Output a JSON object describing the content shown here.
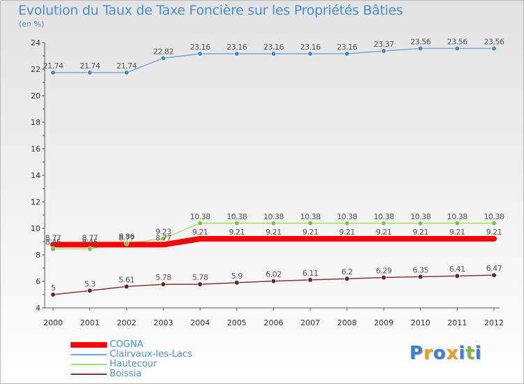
{
  "title": "Evolution du Taux de Taxe Foncière sur les Propriétés Bâties",
  "unit": "(en %)",
  "brand": {
    "text": "Proxiti",
    "letter_colors": [
      "#3a7fd4",
      "#e8a020",
      "#3a7fd4",
      "#e8a020",
      "#3a7fd4",
      "#7bbd3a",
      "#3a7fd4"
    ]
  },
  "colors": {
    "text": "#4a8fd0",
    "axis": "#555555",
    "tick_red": "#cc2222"
  },
  "chart_data": {
    "type": "line",
    "title": "Evolution du Taux de Taxe Foncière sur les Propriétés Bâties",
    "ylabel": "(en %)",
    "xlabel": "",
    "x": [
      "2000",
      "2001",
      "2002",
      "2003",
      "2004",
      "2005",
      "2006",
      "2007",
      "2008",
      "2009",
      "2010",
      "2011",
      "2012"
    ],
    "ylim": [
      4,
      24
    ],
    "yticks": [
      4,
      6,
      8,
      10,
      12,
      14,
      16,
      18,
      20,
      22,
      24
    ],
    "grid": false,
    "legend_position": "bottom-left",
    "series": [
      {
        "name": "COGNA",
        "color": "#ff0000",
        "width": 8,
        "marker": false,
        "labels": [
          "8.77",
          "8.77",
          "8.77",
          "8.77",
          "9.21",
          "9.21",
          "9.21",
          "9.21",
          "9.21",
          "9.21",
          "9.21",
          "9.21",
          "9.21"
        ],
        "values": [
          8.77,
          8.77,
          8.77,
          8.77,
          9.21,
          9.21,
          9.21,
          9.21,
          9.21,
          9.21,
          9.21,
          9.21,
          9.21
        ]
      },
      {
        "name": "Clairvaux-les-Lacs",
        "color": "#7aa9d6",
        "width": 1.5,
        "marker": true,
        "marker_color": "#3d8ccb",
        "labels": [
          "21.74",
          "21.74",
          "21.74",
          "22.82",
          "23.16",
          "23.16",
          "23.16",
          "23.16",
          "23.16",
          "23.37",
          "23.56",
          "23.56",
          "23.56"
        ],
        "values": [
          21.74,
          21.74,
          21.74,
          22.82,
          23.16,
          23.16,
          23.16,
          23.16,
          23.16,
          23.37,
          23.56,
          23.56,
          23.56
        ]
      },
      {
        "name": "Hautecour",
        "color": "#a9dd74",
        "width": 1.5,
        "marker": true,
        "marker_color": "#7bc23d",
        "labels": [
          "8.45",
          "8.45",
          "8.86",
          "9.23",
          "10.38",
          "10.38",
          "10.38",
          "10.38",
          "10.38",
          "10.38",
          "10.38",
          "10.38",
          "10.38"
        ],
        "values": [
          8.45,
          8.45,
          8.86,
          9.23,
          10.38,
          10.38,
          10.38,
          10.38,
          10.38,
          10.38,
          10.38,
          10.38,
          10.38
        ]
      },
      {
        "name": "Boissia",
        "color": "#7a3a3a",
        "width": 1.5,
        "marker": true,
        "marker_color": "#6a2424",
        "labels": [
          "5",
          "5.3",
          "5.61",
          "5.78",
          "5.78",
          "5.9",
          "6.02",
          "6.11",
          "6.2",
          "6.29",
          "6.35",
          "6.41",
          "6.47"
        ],
        "values": [
          5,
          5.3,
          5.61,
          5.78,
          5.78,
          5.9,
          6.02,
          6.11,
          6.2,
          6.29,
          6.35,
          6.41,
          6.47
        ]
      }
    ]
  }
}
